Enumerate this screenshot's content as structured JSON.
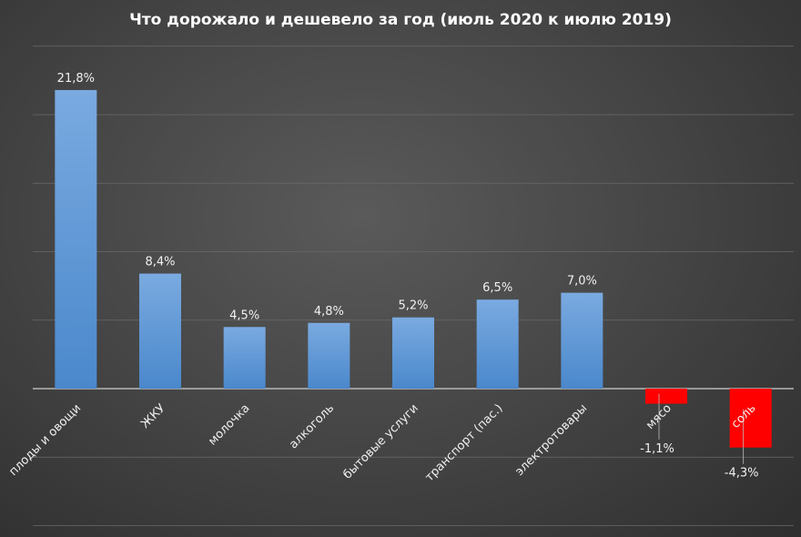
{
  "chart_data": {
    "type": "bar",
    "title": "Что дорожало и дешевело за год (июль 2020 к июлю 2019)",
    "categories": [
      "плоды и овощи",
      "ЖКУ",
      "молочка",
      "алкоголь",
      "бытовые услуги",
      "транспорт (пас.)",
      "электротовары",
      "мясо",
      "соль"
    ],
    "values": [
      21.8,
      8.4,
      4.5,
      4.8,
      5.2,
      6.5,
      7.0,
      -1.1,
      -4.3
    ],
    "value_labels": [
      "21,8%",
      "8,4%",
      "4,5%",
      "4,8%",
      "5,2%",
      "6,5%",
      "7,0%",
      "-1,1%",
      "-4,3%"
    ],
    "ylim": [
      -10,
      25
    ],
    "grid": true,
    "legend": "none",
    "colors": {
      "positive_top": "#7aaae0",
      "positive_bottom": "#4a88cc",
      "negative": "#ff0000",
      "background": "#474747",
      "gridline": "#6a6a6a",
      "zero_line": "#cfcfcf",
      "text": "#f0f0f0"
    }
  }
}
